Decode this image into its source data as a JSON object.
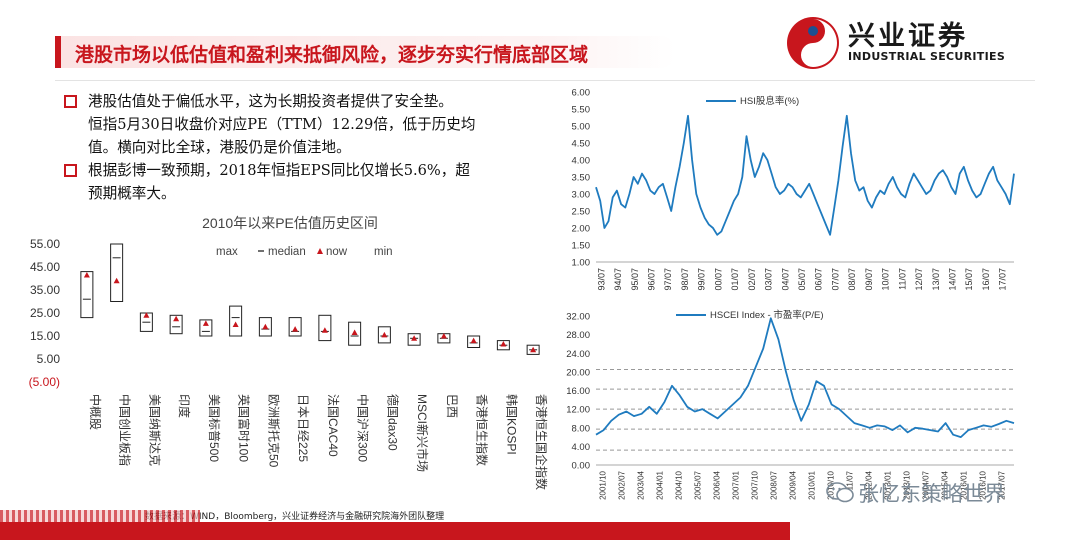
{
  "header": {
    "title": "港股市场以低估值和盈利来抵御风险，逐步夯实行情底部区域",
    "logo_name": "兴业证券",
    "logo_en": "INDUSTRIAL SECURITIES"
  },
  "bullets": [
    "港股估值处于偏低水平，这为长期投资者提供了安全垫。\n恒指5月30日收盘价对应PE（TTM）12.29倍，低于历史均\n值。横向对比全球，港股仍是价值洼地。",
    "根据彭博一致预期，2018年恒指EPS同比仅增长5.6%，超\n预期概率大。"
  ],
  "source": "数据来源：WIND，Bloomberg，兴业证券经济与金融研究院海外团队整理",
  "watermark": "张忆东策略世界",
  "colors": {
    "brand_red": "#c8161d",
    "line_blue": "#1f7bbf",
    "gridline": "#d0d0d0"
  },
  "chart_data": [
    {
      "type": "range",
      "title": "2010年以来PE估值历史区间",
      "legend": [
        "max",
        "median",
        "now",
        "min"
      ],
      "legend_placement": "top",
      "yticks": [
        "55.00",
        "45.00",
        "35.00",
        "25.00",
        "15.00",
        "5.00",
        "(5.00)"
      ],
      "ylim": [
        -5,
        55
      ],
      "categories": [
        "中概股",
        "中国创业板指",
        "美国纳斯达克",
        "印度",
        "美国标普500",
        "英国富时100",
        "欧洲斯托克50",
        "日本日经225",
        "法国CAC40",
        "中国沪深300",
        "德国dax30",
        "MSCI新兴市场",
        "巴西",
        "香港恒生指数",
        "韩国KOSPI",
        "香港恒生国企指数"
      ],
      "max": [
        43,
        55,
        25,
        24,
        22,
        28,
        23,
        23,
        24,
        21,
        19,
        16,
        16,
        15,
        13,
        11
      ],
      "median": [
        31,
        49,
        21,
        19,
        17,
        23,
        18,
        17,
        17,
        15,
        15,
        14,
        14,
        12,
        11,
        9
      ],
      "now": [
        41.5,
        39,
        24,
        22.5,
        20.5,
        20,
        19,
        18,
        17.5,
        16.5,
        15.5,
        14,
        15,
        13,
        11.5,
        9
      ],
      "min": [
        23,
        30,
        17,
        16,
        15,
        15,
        15,
        15,
        13,
        11,
        12,
        11,
        12,
        10,
        9,
        7
      ]
    },
    {
      "type": "line",
      "series": [
        {
          "name": "HSI股息率(%)"
        }
      ],
      "yticks": [
        "6.00",
        "5.50",
        "5.00",
        "4.50",
        "4.00",
        "3.50",
        "3.00",
        "2.50",
        "2.00",
        "1.50",
        "1.00"
      ],
      "ylim": [
        1,
        6
      ],
      "xticks": [
        "93/07",
        "94/07",
        "95/07",
        "96/07",
        "97/07",
        "98/07",
        "99/07",
        "00/07",
        "01/07",
        "02/07",
        "03/07",
        "04/07",
        "05/07",
        "06/07",
        "07/07",
        "08/07",
        "09/07",
        "10/07",
        "11/07",
        "12/07",
        "13/07",
        "14/07",
        "15/07",
        "16/07",
        "17/07"
      ],
      "values": [
        3.2,
        2.8,
        2.0,
        2.2,
        2.9,
        3.1,
        2.7,
        2.6,
        3.0,
        3.5,
        3.3,
        3.6,
        3.4,
        3.1,
        3.0,
        3.2,
        3.3,
        2.9,
        2.5,
        3.2,
        3.8,
        4.5,
        5.3,
        4.0,
        3.0,
        2.6,
        2.3,
        2.1,
        2.0,
        1.8,
        1.9,
        2.2,
        2.5,
        2.8,
        3.0,
        3.5,
        4.7,
        4.0,
        3.5,
        3.8,
        4.2,
        4.0,
        3.6,
        3.2,
        3.0,
        3.1,
        3.3,
        3.2,
        3.0,
        2.9,
        3.1,
        3.3,
        3.0,
        2.7,
        2.4,
        2.1,
        1.8,
        2.6,
        3.4,
        4.4,
        5.3,
        4.2,
        3.4,
        3.1,
        3.2,
        2.8,
        2.6,
        2.9,
        3.1,
        3.0,
        3.3,
        3.5,
        3.2,
        3.0,
        2.9,
        3.3,
        3.6,
        3.4,
        3.2,
        3.0,
        3.1,
        3.4,
        3.6,
        3.7,
        3.5,
        3.2,
        3.0,
        3.6,
        3.8,
        3.4,
        3.1,
        2.9,
        3.0,
        3.3,
        3.6,
        3.8,
        3.4,
        3.2,
        3.0,
        2.7,
        3.6
      ]
    },
    {
      "type": "line",
      "series": [
        {
          "name": "HSCEI Index - 市盈率(P/E)"
        }
      ],
      "yticks": [
        "32.00",
        "28.00",
        "24.00",
        "20.00",
        "16.00",
        "12.00",
        "8.00",
        "4.00",
        "0.00"
      ],
      "ylim": [
        0,
        32
      ],
      "reference_lines": [
        20.5,
        16.3,
        12.0,
        7.7,
        3.2
      ],
      "xticks": [
        "2001/10",
        "2002/07",
        "2003/04",
        "2004/01",
        "2004/10",
        "2005/07",
        "2006/04",
        "2007/01",
        "2007/10",
        "2008/07",
        "2009/04",
        "2010/01",
        "2010/10",
        "2011/07",
        "2012/04",
        "2013/01",
        "2013/10",
        "2014/07",
        "2015/04",
        "2016/01",
        "2016/10",
        "2017/07"
      ],
      "values": [
        6.5,
        7.5,
        9.5,
        10.8,
        11.5,
        10.5,
        11.0,
        12.5,
        11.0,
        13.5,
        17.0,
        15.0,
        12.5,
        11.5,
        12.0,
        11.0,
        10.0,
        11.5,
        13.0,
        14.5,
        17.0,
        21.0,
        25.0,
        31.5,
        27.0,
        20.0,
        14.0,
        9.5,
        13.0,
        18.0,
        17.0,
        13.0,
        12.0,
        10.5,
        9.0,
        8.5,
        8.0,
        8.5,
        8.3,
        7.5,
        8.5,
        7.0,
        8.0,
        7.8,
        7.5,
        7.2,
        9.0,
        6.5,
        6.0,
        7.5,
        8.0,
        8.5,
        8.2,
        8.8,
        9.5,
        9.0
      ]
    }
  ]
}
